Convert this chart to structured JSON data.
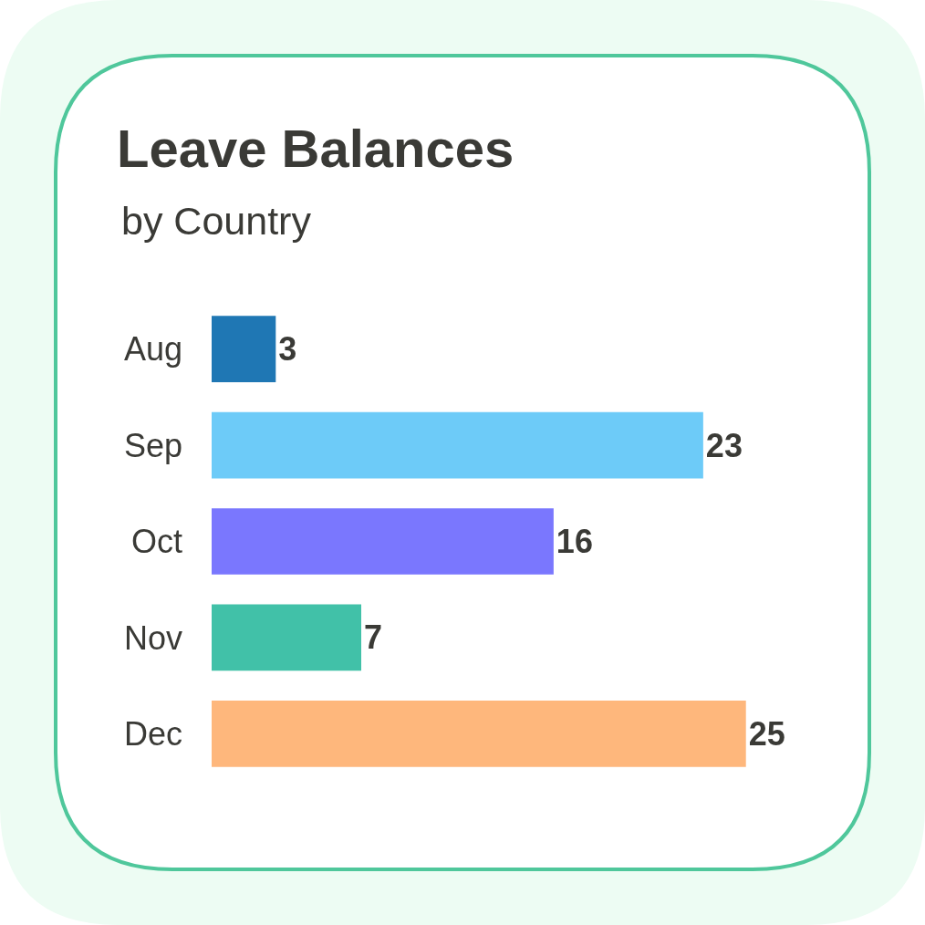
{
  "chart_data": {
    "type": "bar",
    "orientation": "horizontal",
    "title": "Leave Balances",
    "subtitle": "by Country",
    "categories": [
      "Aug",
      "Sep",
      "Oct",
      "Nov",
      "Dec"
    ],
    "values": [
      3,
      23,
      16,
      7,
      25
    ],
    "colors": [
      "#1f77b4",
      "#6dcbf8",
      "#7a77fe",
      "#41c1a8",
      "#feb77c"
    ],
    "data_labels": true,
    "tick_labels": "y"
  }
}
